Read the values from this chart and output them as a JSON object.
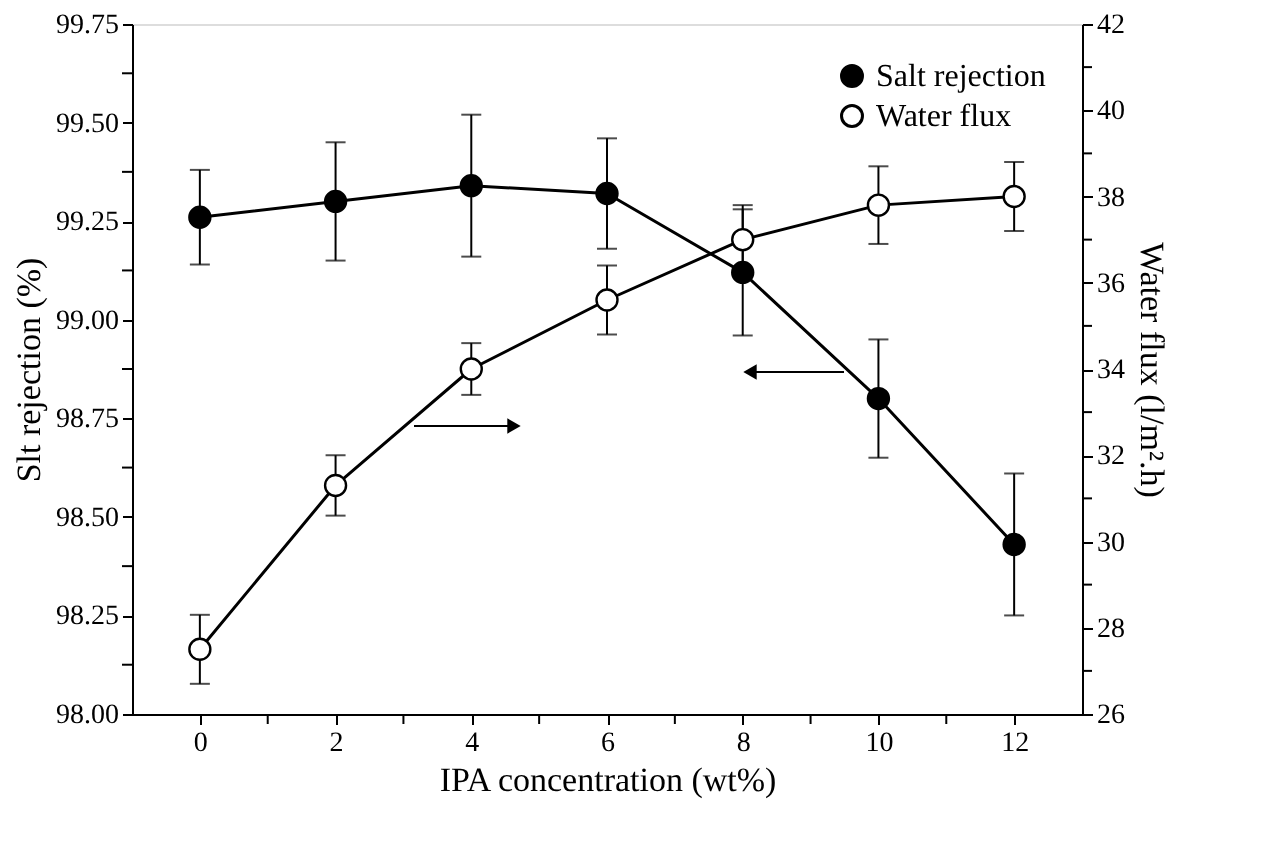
{
  "chart_data": {
    "type": "line",
    "xlabel": "IPA concentration (wt%)",
    "ylabel": "Slt rejection (%)",
    "y2label": "Water flux (l/m².h)",
    "x": [
      0,
      2,
      4,
      6,
      8,
      10,
      12
    ],
    "series": [
      {
        "name": "Salt rejection",
        "color": "#000000",
        "values": [
          99.26,
          99.3,
          99.34,
          99.32,
          99.12,
          98.8,
          98.43
        ],
        "errors": [
          0.12,
          0.15,
          0.18,
          0.14,
          0.16,
          0.15,
          0.18
        ]
      },
      {
        "name": "Water flux",
        "color": "#000000",
        "axis": "y2",
        "values": [
          27.5,
          31.3,
          34.0,
          35.6,
          37.0,
          37.8,
          38.0
        ],
        "errors": [
          0.8,
          0.7,
          0.6,
          0.8,
          0.8,
          0.9,
          0.8
        ]
      }
    ],
    "xlim": [
      -1,
      13
    ],
    "xticks": [
      0,
      {
        "value": 1,
        "label": null
      },
      2,
      {
        "value": 3,
        "label": null
      },
      4,
      {
        "value": 5,
        "label": null
      },
      6,
      {
        "value": 7,
        "label": null
      },
      8,
      {
        "value": 9,
        "label": null
      },
      10,
      {
        "value": 11,
        "label": null
      },
      12
    ],
    "ylim": [
      98.0,
      99.75
    ],
    "yticks": [
      {
        "value": 98.0,
        "label": "98.00"
      },
      {
        "value": 98.125,
        "label": null
      },
      {
        "value": 98.25,
        "label": "98.25"
      },
      {
        "value": 98.375,
        "label": null
      },
      {
        "value": 98.5,
        "label": "98.50"
      },
      {
        "value": 98.625,
        "label": null
      },
      {
        "value": 98.75,
        "label": "98.75"
      },
      {
        "value": 98.875,
        "label": null
      },
      {
        "value": 99.0,
        "label": "99.00"
      },
      {
        "value": 99.125,
        "label": null
      },
      {
        "value": 99.25,
        "label": "99.25"
      },
      {
        "value": 99.375,
        "label": null
      },
      {
        "value": 99.5,
        "label": "99.50"
      },
      {
        "value": 99.625,
        "label": null
      },
      {
        "value": 99.75,
        "label": "99.75"
      }
    ],
    "y2lim": [
      26,
      42
    ],
    "y2ticks": [
      26,
      {
        "value": 27,
        "label": null
      },
      28,
      {
        "value": 29,
        "label": null
      },
      30,
      {
        "value": 31,
        "label": null
      },
      32,
      {
        "value": 33,
        "label": null
      },
      34,
      {
        "value": 35,
        "label": null
      },
      36,
      {
        "value": 37,
        "label": null
      },
      38,
      {
        "value": 39,
        "label": null
      },
      40,
      {
        "value": 41,
        "label": null
      },
      42
    ],
    "marker": "circle",
    "line_style": "solid",
    "grid": false,
    "legend": "top right"
  }
}
